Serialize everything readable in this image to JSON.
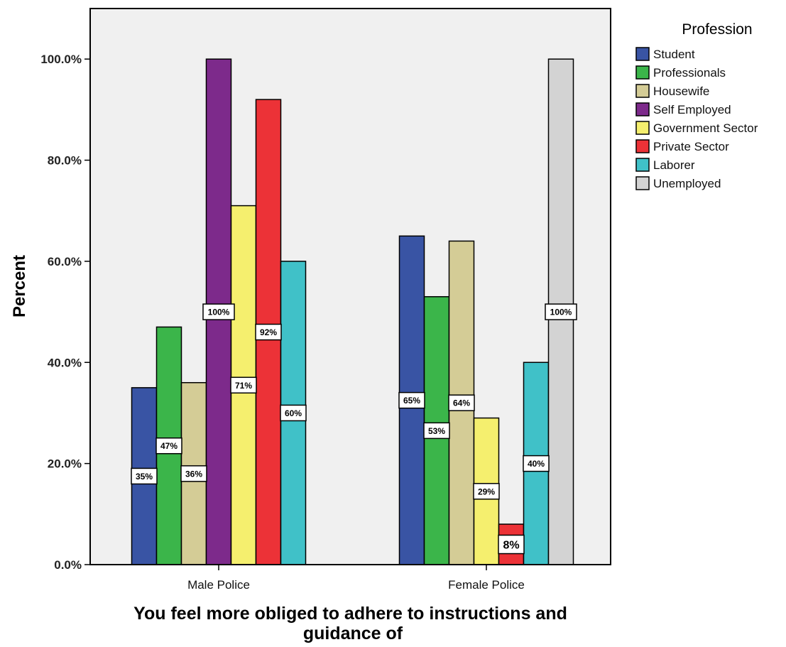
{
  "chart_data": {
    "type": "bar",
    "categories": [
      "Male Police",
      "Female Police"
    ],
    "series": [
      {
        "name": "Student",
        "color": "#3954a4",
        "values": [
          35,
          65
        ],
        "labels": [
          "35%",
          "65%"
        ]
      },
      {
        "name": "Professionals",
        "color": "#3bb54a",
        "values": [
          47,
          53
        ],
        "labels": [
          "47%",
          "53%"
        ]
      },
      {
        "name": "Housewife",
        "color": "#d4cc96",
        "values": [
          36,
          64
        ],
        "labels": [
          "36%",
          "64%"
        ]
      },
      {
        "name": "Self Employed",
        "color": "#7d2a8b",
        "values": [
          100,
          null
        ],
        "labels": [
          "100%",
          ""
        ]
      },
      {
        "name": "Government Sector",
        "color": "#f5ef6e",
        "values": [
          71,
          29
        ],
        "labels": [
          "71%",
          "29%"
        ]
      },
      {
        "name": "Private Sector",
        "color": "#ec3237",
        "values": [
          92,
          8
        ],
        "labels": [
          "92%",
          "8%"
        ]
      },
      {
        "name": "Laborer",
        "color": "#40c1c8",
        "values": [
          60,
          40
        ],
        "labels": [
          "60%",
          "40%"
        ]
      },
      {
        "name": "Unemployed",
        "color": "#d3d3d3",
        "values": [
          null,
          100
        ],
        "labels": [
          "",
          "100%"
        ]
      }
    ],
    "yticks": [
      "0.0%",
      "20.0%",
      "40.0%",
      "60.0%",
      "80.0%",
      "100.0%"
    ],
    "ylim": [
      0,
      110
    ],
    "xlabel": "You feel more obliged to adhere to instructions and guidance of",
    "xlabel_lines": [
      "You feel more obliged to adhere to instructions and",
      "guidance of"
    ],
    "ylabel": "Percent",
    "legend_title": "Profession",
    "legend_position": "right",
    "plot_background": "#f0f0f0"
  }
}
